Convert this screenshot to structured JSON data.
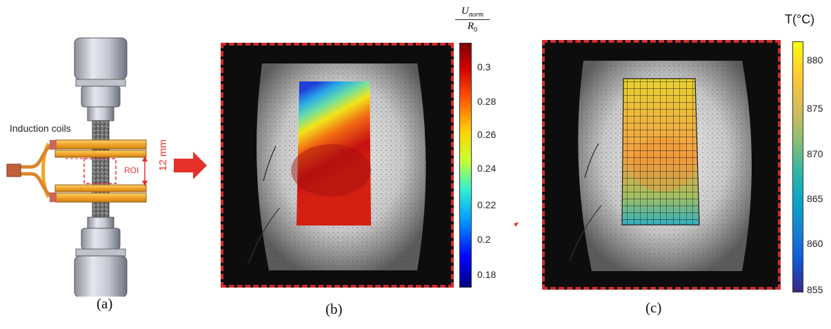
{
  "panel_a": {
    "caption": "(a)",
    "coil_label": "Induction coils",
    "roi_label": "ROI",
    "dimension_label": "12 mm"
  },
  "panel_b": {
    "caption": "(b)",
    "colorbar": {
      "title_numerator": "U",
      "title_numerator_sub": "norm",
      "title_denominator": "R",
      "title_denominator_sub": "0",
      "ticks": [
        "0.3",
        "0.28",
        "0.26",
        "0.24",
        "0.22",
        "0.2",
        "0.18"
      ],
      "colormap": "jet"
    }
  },
  "panel_c": {
    "caption": "(c)",
    "colorbar": {
      "title": "T(°C)",
      "ticks": [
        "880",
        "875",
        "870",
        "865",
        "860",
        "855"
      ],
      "colormap": "parula"
    }
  },
  "colors": {
    "frame_border": "#d62a2a",
    "arrow": "#e5312a",
    "coil_orange": "#f2a52b",
    "roi_dash": "#e03030"
  }
}
